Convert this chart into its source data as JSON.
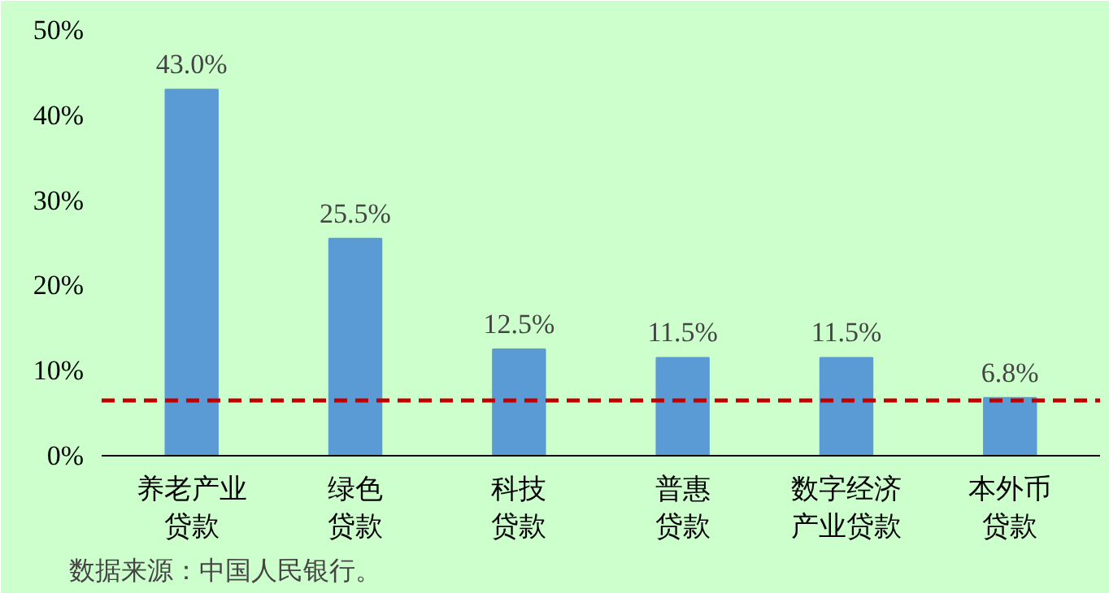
{
  "chart_data": {
    "type": "bar",
    "categories": [
      "养老产业贷款",
      "绿色贷款",
      "科技贷款",
      "普惠贷款",
      "数字经济产业贷款",
      "本外币贷款"
    ],
    "values": [
      43.0,
      25.5,
      12.5,
      11.5,
      11.5,
      6.8
    ],
    "value_labels": [
      "43.0%",
      "25.5%",
      "12.5%",
      "11.5%",
      "11.5%",
      "6.8%"
    ],
    "color": "#5b9bd5",
    "ylim": [
      0,
      50
    ],
    "yticks": [
      {
        "value": 0,
        "label": "0%"
      },
      {
        "value": 10,
        "label": "10%"
      },
      {
        "value": 20,
        "label": "20%"
      },
      {
        "value": 30,
        "label": "30%"
      },
      {
        "value": 40,
        "label": "40%"
      },
      {
        "value": 50,
        "label": "50%"
      }
    ],
    "grid": false,
    "ref_lines": [
      {
        "axis": "y",
        "value": 6.5,
        "color": "#c00000",
        "line_style": "dashed"
      }
    ],
    "annotations": [
      "数据来源：中国人民银行。"
    ]
  }
}
